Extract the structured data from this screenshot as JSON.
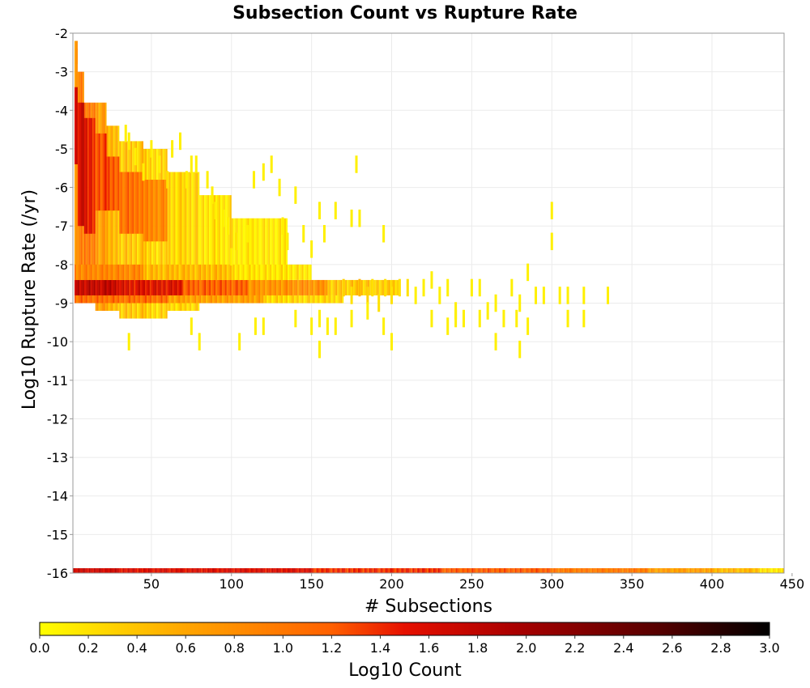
{
  "chart_data": {
    "type": "heatmap",
    "title": "Subsection Count vs Rupture Rate",
    "xlabel": "# Subsections",
    "ylabel": "Log10 Rupture Rate (/yr)",
    "xlim": [
      1,
      445
    ],
    "ylim": [
      -16,
      -2
    ],
    "x_ticks": [
      50,
      100,
      150,
      200,
      250,
      300,
      350,
      400,
      450
    ],
    "y_ticks": [
      -2,
      -3,
      -4,
      -5,
      -6,
      -7,
      -8,
      -9,
      -10,
      -11,
      -12,
      -13,
      -14,
      -15,
      -16
    ],
    "grid": true,
    "colorscale": {
      "label": "Log10 Count",
      "range": [
        0.0,
        3.0
      ],
      "ticks": [
        "0.0",
        "0.2",
        "0.4",
        "0.6",
        "0.8",
        "1.0",
        "1.2",
        "1.4",
        "1.6",
        "1.8",
        "2.0",
        "2.2",
        "2.4",
        "2.6",
        "2.8",
        "3.0"
      ],
      "colors": [
        "#ffff00",
        "#ffa500",
        "#ff6000",
        "#e61000",
        "#aa0000",
        "#550000",
        "#000000"
      ]
    },
    "x_bin_width": 1,
    "y_bin_height": 0.2,
    "zero_rate_row": {
      "y": -16,
      "segments": [
        {
          "x0": 1,
          "x1": 30,
          "v": 1.7
        },
        {
          "x0": 30,
          "x1": 150,
          "v": 1.6
        },
        {
          "x0": 150,
          "x1": 230,
          "v": 1.4
        },
        {
          "x0": 230,
          "x1": 300,
          "v": 1.2
        },
        {
          "x0": 300,
          "x1": 360,
          "v": 1.0
        },
        {
          "x0": 360,
          "x1": 400,
          "v": 0.7
        },
        {
          "x0": 400,
          "x1": 430,
          "v": 0.5
        },
        {
          "x0": 430,
          "x1": 445,
          "v": 0.2
        }
      ]
    },
    "bands": [
      {
        "x0": 2,
        "x1": 4,
        "y0": -9.0,
        "y1": -2.2,
        "v": 0.6
      },
      {
        "x0": 2,
        "x1": 4,
        "y0": -5.4,
        "y1": -3.4,
        "v": 1.7
      },
      {
        "x0": 2,
        "x1": 4,
        "y0": -2.8,
        "y1": -2.4,
        "v": 0.9
      },
      {
        "x0": 4,
        "x1": 8,
        "y0": -9.0,
        "y1": -3.0,
        "v": 0.9
      },
      {
        "x0": 4,
        "x1": 8,
        "y0": -7.0,
        "y1": -3.8,
        "v": 1.7
      },
      {
        "x0": 8,
        "x1": 15,
        "y0": -9.0,
        "y1": -3.8,
        "v": 1.0
      },
      {
        "x0": 8,
        "x1": 15,
        "y0": -7.2,
        "y1": -4.2,
        "v": 1.5
      },
      {
        "x0": 15,
        "x1": 22,
        "y0": -9.2,
        "y1": -3.8,
        "v": 0.7
      },
      {
        "x0": 15,
        "x1": 22,
        "y0": -6.6,
        "y1": -4.6,
        "v": 1.3
      },
      {
        "x0": 22,
        "x1": 30,
        "y0": -9.2,
        "y1": -4.4,
        "v": 0.5
      },
      {
        "x0": 22,
        "x1": 30,
        "y0": -6.6,
        "y1": -5.2,
        "v": 1.2
      },
      {
        "x0": 30,
        "x1": 45,
        "y0": -9.4,
        "y1": -4.8,
        "v": 0.4
      },
      {
        "x0": 30,
        "x1": 45,
        "y0": -7.2,
        "y1": -5.6,
        "v": 1.1
      },
      {
        "x0": 45,
        "x1": 60,
        "y0": -9.4,
        "y1": -5.0,
        "v": 0.3
      },
      {
        "x0": 45,
        "x1": 60,
        "y0": -7.4,
        "y1": -5.8,
        "v": 0.9
      },
      {
        "x0": 60,
        "x1": 80,
        "y0": -9.2,
        "y1": -5.6,
        "v": 0.3
      },
      {
        "x0": 80,
        "x1": 100,
        "y0": -9.0,
        "y1": -6.2,
        "v": 0.2
      },
      {
        "x0": 100,
        "x1": 135,
        "y0": -9.0,
        "y1": -6.8,
        "v": 0.15
      },
      {
        "x0": 2,
        "x1": 30,
        "y0": -8.8,
        "y1": -8.4,
        "v": 1.8
      },
      {
        "x0": 30,
        "x1": 70,
        "y0": -8.8,
        "y1": -8.4,
        "v": 1.6
      },
      {
        "x0": 70,
        "x1": 110,
        "y0": -8.8,
        "y1": -8.4,
        "v": 1.2
      },
      {
        "x0": 110,
        "x1": 160,
        "y0": -8.8,
        "y1": -8.4,
        "v": 0.8
      },
      {
        "x0": 160,
        "x1": 205,
        "y0": -8.8,
        "y1": -8.4,
        "v": 0.4
      },
      {
        "x0": 2,
        "x1": 60,
        "y0": -9.0,
        "y1": -8.8,
        "v": 1.1
      },
      {
        "x0": 60,
        "x1": 120,
        "y0": -9.0,
        "y1": -8.8,
        "v": 0.7
      },
      {
        "x0": 120,
        "x1": 170,
        "y0": -9.0,
        "y1": -8.8,
        "v": 0.3
      },
      {
        "x0": 2,
        "x1": 45,
        "y0": -8.4,
        "y1": -8.0,
        "v": 0.9
      },
      {
        "x0": 45,
        "x1": 100,
        "y0": -8.4,
        "y1": -8.0,
        "v": 0.5
      },
      {
        "x0": 100,
        "x1": 150,
        "y0": -8.4,
        "y1": -8.0,
        "v": 0.2
      }
    ],
    "cells": [
      [
        34,
        -4.6,
        0.1
      ],
      [
        36,
        -4.8,
        0.1
      ],
      [
        40,
        -5.2,
        0.1
      ],
      [
        45,
        -5.6,
        0.1
      ],
      [
        50,
        -5.0,
        0.1
      ],
      [
        55,
        -5.4,
        0.1
      ],
      [
        60,
        -5.8,
        0.2
      ],
      [
        63,
        -5.0,
        0.1
      ],
      [
        68,
        -4.8,
        0.1
      ],
      [
        72,
        -5.8,
        0.1
      ],
      [
        75,
        -5.4,
        0.1
      ],
      [
        78,
        -5.4,
        0.1
      ],
      [
        85,
        -5.8,
        0.1
      ],
      [
        88,
        -6.2,
        0.1
      ],
      [
        90,
        -6.6,
        0.1
      ],
      [
        95,
        -6.8,
        0.1
      ],
      [
        98,
        -7.0,
        0.1
      ],
      [
        100,
        -7.8,
        0.1
      ],
      [
        103,
        -7.4,
        0.2
      ],
      [
        110,
        -7.2,
        0.1
      ],
      [
        114,
        -5.8,
        0.1
      ],
      [
        120,
        -5.6,
        0.1
      ],
      [
        125,
        -5.4,
        0.1
      ],
      [
        130,
        -6.0,
        0.1
      ],
      [
        132,
        -7.0,
        0.1
      ],
      [
        135,
        -7.4,
        0.1
      ],
      [
        140,
        -6.2,
        0.1
      ],
      [
        145,
        -7.2,
        0.1
      ],
      [
        150,
        -7.6,
        0.1
      ],
      [
        155,
        -6.6,
        0.1
      ],
      [
        158,
        -7.2,
        0.1
      ],
      [
        165,
        -6.6,
        0.1
      ],
      [
        175,
        -6.8,
        0.1
      ],
      [
        178,
        -5.4,
        0.1
      ],
      [
        180,
        -6.8,
        0.1
      ],
      [
        195,
        -7.2,
        0.1
      ],
      [
        300,
        -6.6,
        0.1
      ],
      [
        300,
        -7.4,
        0.1
      ],
      [
        170,
        -8.6,
        0.3
      ],
      [
        175,
        -8.8,
        0.2
      ],
      [
        180,
        -8.6,
        0.5
      ],
      [
        185,
        -8.8,
        0.3
      ],
      [
        188,
        -8.6,
        0.2
      ],
      [
        192,
        -9.0,
        0.2
      ],
      [
        196,
        -8.6,
        0.2
      ],
      [
        200,
        -8.8,
        0.2
      ],
      [
        205,
        -8.6,
        0.2
      ],
      [
        210,
        -8.6,
        0.2
      ],
      [
        215,
        -8.8,
        0.1
      ],
      [
        220,
        -8.6,
        0.1
      ],
      [
        225,
        -8.4,
        0.1
      ],
      [
        230,
        -8.8,
        0.1
      ],
      [
        235,
        -8.6,
        0.1
      ],
      [
        240,
        -9.2,
        0.1
      ],
      [
        245,
        -9.4,
        0.1
      ],
      [
        250,
        -8.6,
        0.1
      ],
      [
        255,
        -8.6,
        0.1
      ],
      [
        260,
        -9.2,
        0.1
      ],
      [
        265,
        -9.0,
        0.1
      ],
      [
        270,
        -9.4,
        0.1
      ],
      [
        275,
        -8.6,
        0.1
      ],
      [
        278,
        -9.4,
        0.1
      ],
      [
        280,
        -9.0,
        0.1
      ],
      [
        285,
        -8.2,
        0.1
      ],
      [
        290,
        -8.8,
        0.1
      ],
      [
        295,
        -8.8,
        0.1
      ],
      [
        305,
        -8.8,
        0.1
      ],
      [
        310,
        -8.8,
        0.1
      ],
      [
        320,
        -8.8,
        0.1
      ],
      [
        335,
        -8.8,
        0.1
      ],
      [
        140,
        -9.4,
        0.1
      ],
      [
        150,
        -9.6,
        0.1
      ],
      [
        155,
        -9.4,
        0.1
      ],
      [
        160,
        -9.6,
        0.1
      ],
      [
        165,
        -9.6,
        0.1
      ],
      [
        175,
        -9.4,
        0.1
      ],
      [
        185,
        -9.2,
        0.1
      ],
      [
        195,
        -9.6,
        0.1
      ],
      [
        225,
        -9.4,
        0.1
      ],
      [
        235,
        -9.6,
        0.1
      ],
      [
        240,
        -9.4,
        0.1
      ],
      [
        255,
        -9.4,
        0.1
      ],
      [
        285,
        -9.6,
        0.1
      ],
      [
        310,
        -9.4,
        0.1
      ],
      [
        320,
        -9.4,
        0.1
      ],
      [
        36,
        -10.0,
        0.1
      ],
      [
        80,
        -10.0,
        0.1
      ],
      [
        105,
        -10.0,
        0.1
      ],
      [
        155,
        -10.2,
        0.1
      ],
      [
        200,
        -10.0,
        0.1
      ],
      [
        265,
        -10.0,
        0.1
      ],
      [
        280,
        -10.2,
        0.1
      ],
      [
        120,
        -9.6,
        0.1
      ],
      [
        115,
        -9.6,
        0.1
      ],
      [
        75,
        -9.6,
        0.1
      ]
    ]
  }
}
